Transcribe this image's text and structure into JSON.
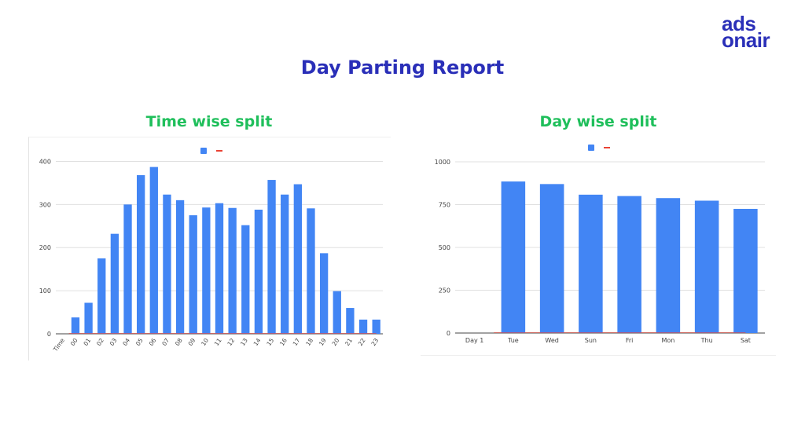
{
  "logo": {
    "line1": "ads",
    "line2": "onair"
  },
  "report_title": "Day Parting Report",
  "colors": {
    "bar": "#4285f4",
    "legend_second": "#ea4335",
    "title_blue": "#2a2fb8",
    "chart_title_green": "#1fbf5b"
  },
  "chart_data": [
    {
      "type": "bar",
      "title": "Time wise split",
      "xlabel": "",
      "ylabel": "",
      "categories": [
        "Time",
        "00",
        "01",
        "02",
        "03",
        "04",
        "05",
        "06",
        "07",
        "08",
        "09",
        "10",
        "11",
        "12",
        "13",
        "14",
        "15",
        "16",
        "17",
        "18",
        "19",
        "20",
        "21",
        "22",
        "23"
      ],
      "series": [
        {
          "values": [
            0,
            38,
            72,
            175,
            232,
            300,
            368,
            387,
            323,
            310,
            275,
            293,
            303,
            292,
            252,
            288,
            357,
            323,
            347,
            291,
            187,
            99,
            60,
            33,
            33
          ]
        }
      ],
      "yticks": [
        0,
        100,
        200,
        300,
        400
      ],
      "ylim": [
        0,
        430
      ],
      "grid": true,
      "legend_position": "top-center"
    },
    {
      "type": "bar",
      "title": "Day wise split",
      "xlabel": "",
      "ylabel": "",
      "categories": [
        "Day 1",
        "Tue",
        "Wed",
        "Sun",
        "Fri",
        "Mon",
        "Thu",
        "Sat"
      ],
      "series": [
        {
          "values": [
            0,
            885,
            870,
            808,
            800,
            788,
            773,
            725
          ]
        }
      ],
      "yticks": [
        0,
        250,
        500,
        750,
        1000
      ],
      "ylim": [
        0,
        1000
      ],
      "grid": true,
      "legend_position": "top-center"
    }
  ]
}
